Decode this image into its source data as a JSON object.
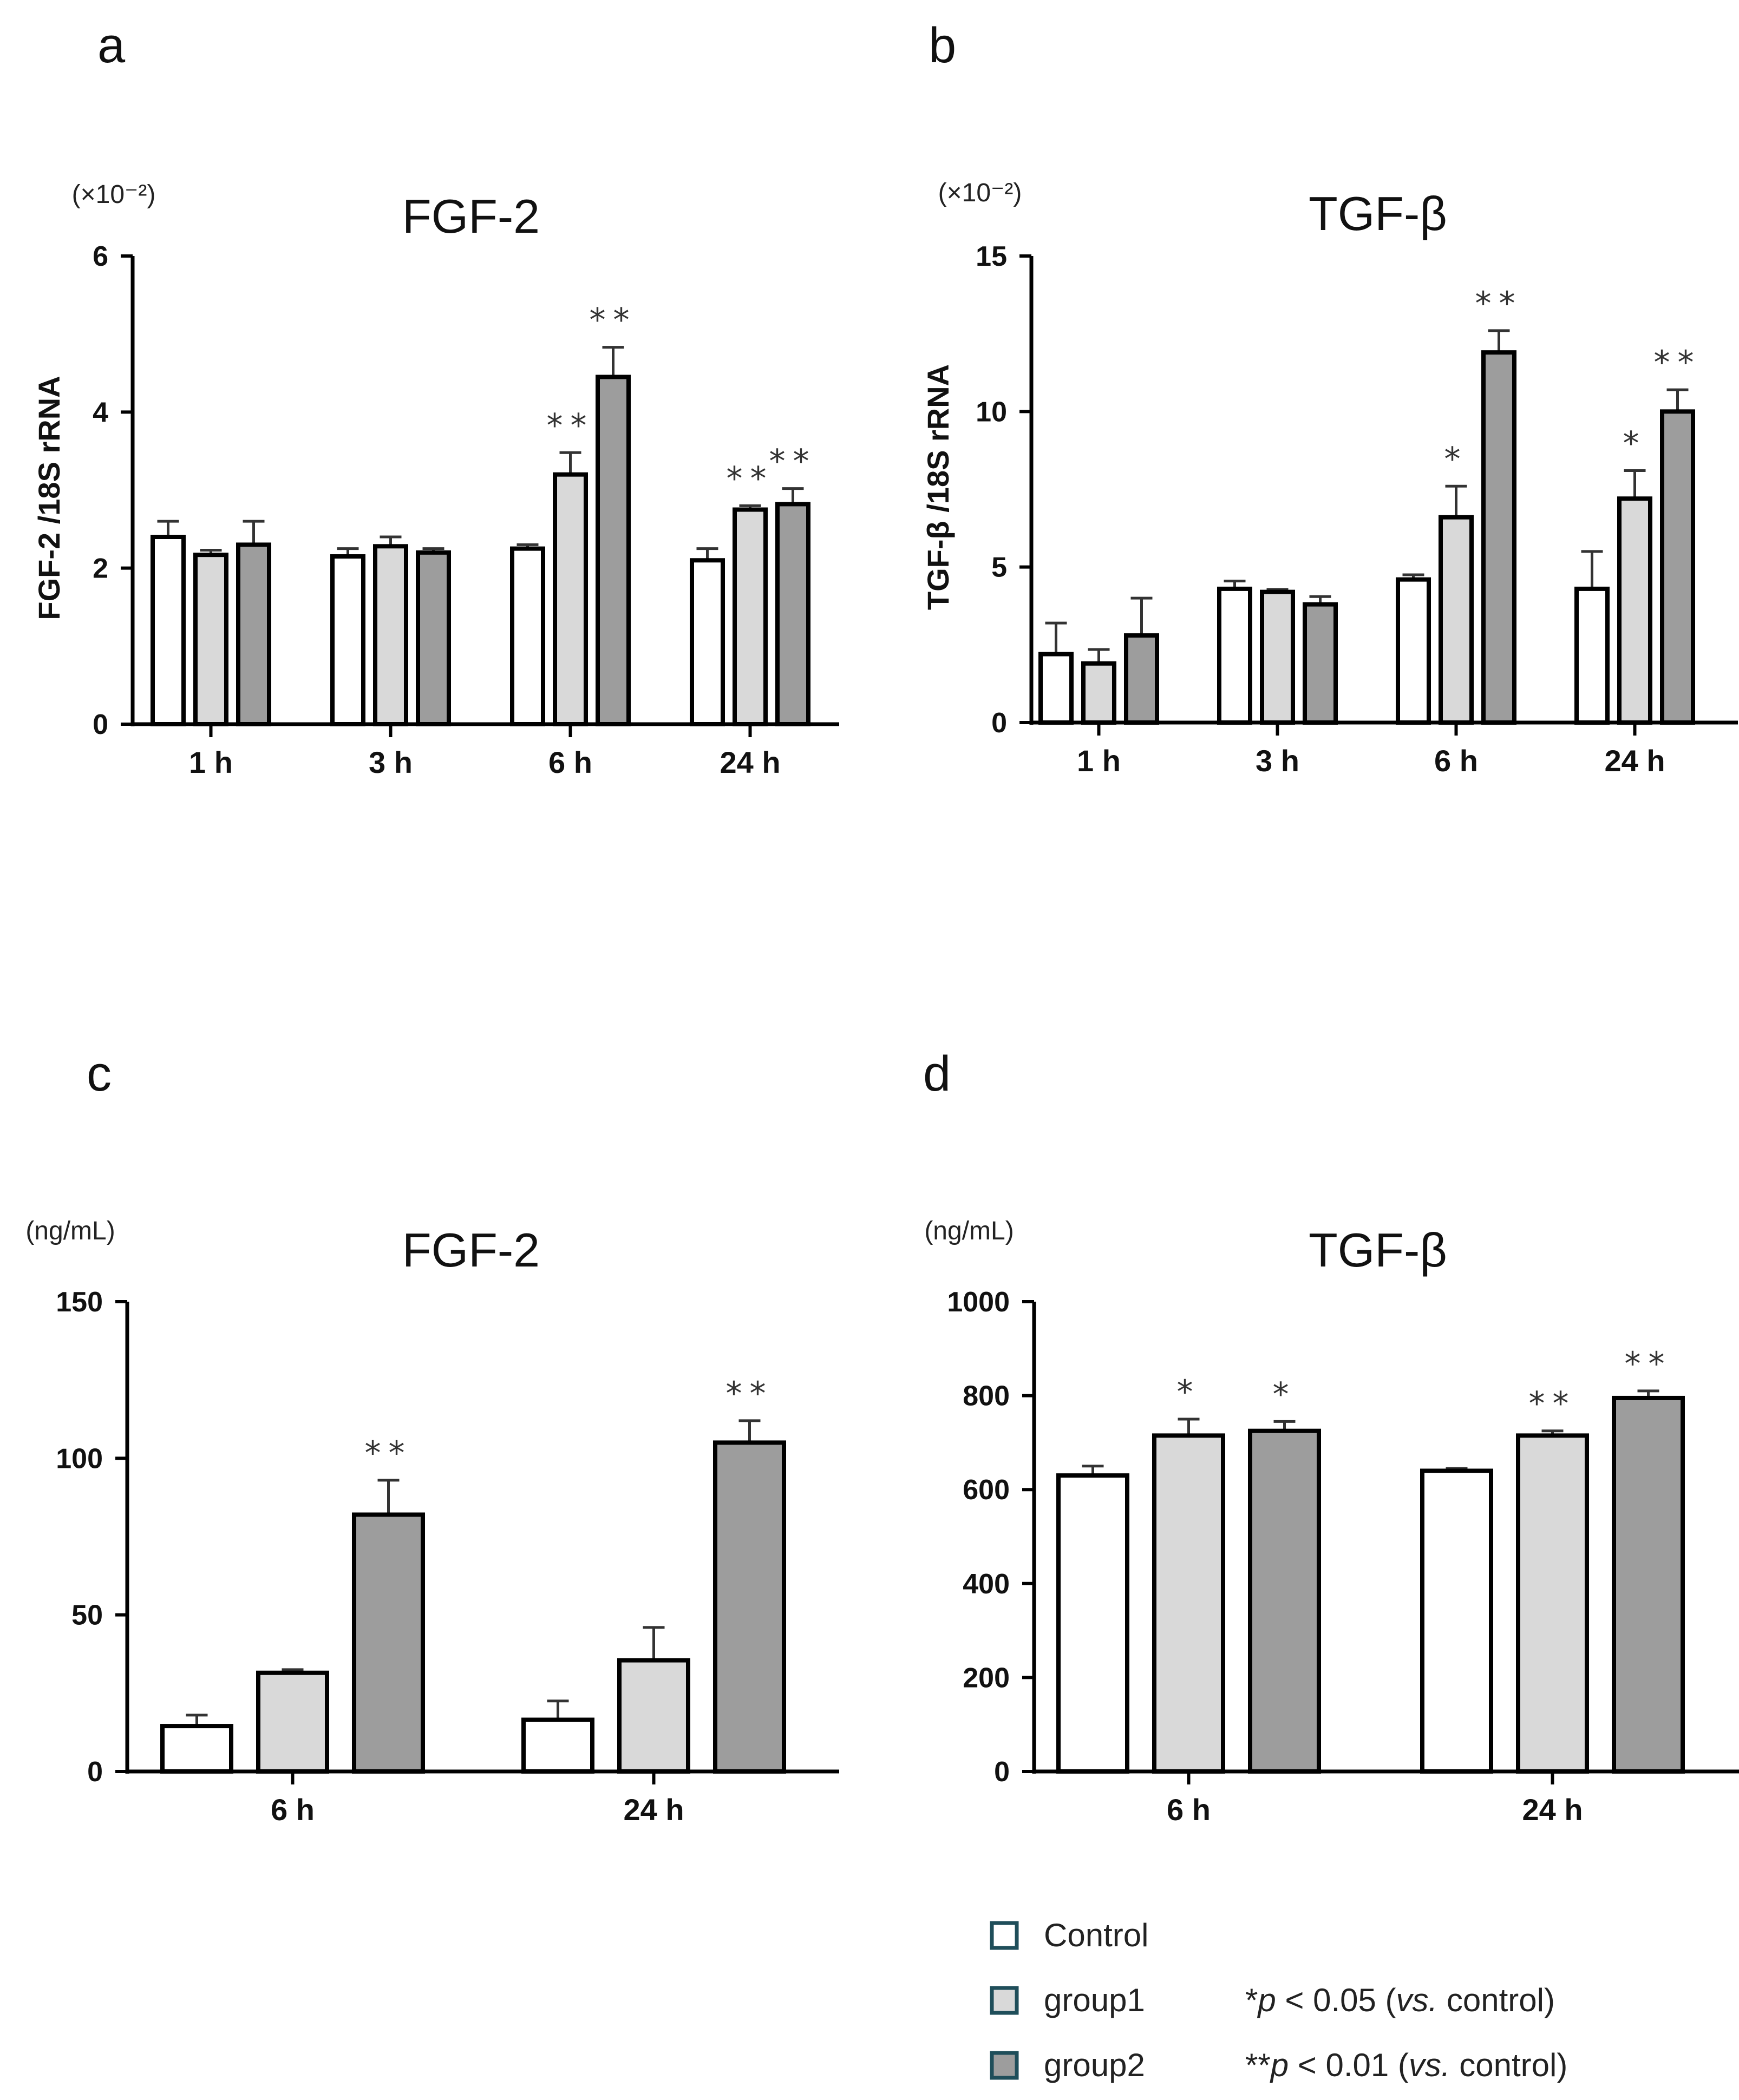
{
  "chart_data": [
    {
      "type": "bar",
      "panel": "a",
      "title": "FGF-2",
      "unit": "(×10⁻²)",
      "ylabel": "FGF-2 /18S rRNA",
      "xlabel": "",
      "ylim": [
        0,
        6
      ],
      "yticks": [
        "0",
        "2",
        "4",
        "6"
      ],
      "ytick_values": [
        0,
        2,
        4,
        6
      ],
      "categories": [
        "1 h",
        "3 h",
        "6 h",
        "24 h"
      ],
      "series": [
        {
          "name": "Control",
          "values": [
            2.4,
            2.15,
            2.25,
            2.1
          ],
          "errors": [
            0.2,
            0.1,
            0.05,
            0.15
          ],
          "sig": [
            "",
            "",
            "",
            ""
          ]
        },
        {
          "name": "group1",
          "values": [
            2.17,
            2.28,
            3.2,
            2.75
          ],
          "errors": [
            0.06,
            0.12,
            0.28,
            0.05
          ],
          "sig": [
            "",
            "",
            "**",
            "**"
          ]
        },
        {
          "name": "group2",
          "values": [
            2.3,
            2.2,
            4.45,
            2.82
          ],
          "errors": [
            0.3,
            0.05,
            0.38,
            0.2
          ],
          "sig": [
            "",
            "",
            "**",
            "**"
          ]
        }
      ]
    },
    {
      "type": "bar",
      "panel": "b",
      "title": "TGF-β",
      "unit": "(×10⁻²)",
      "ylabel": "TGF-β /18S rRNA",
      "xlabel": "",
      "ylim": [
        0,
        15
      ],
      "yticks": [
        "0",
        "5",
        "10",
        "15"
      ],
      "ytick_values": [
        0,
        5,
        10,
        15
      ],
      "categories": [
        "1 h",
        "3 h",
        "6 h",
        "24 h"
      ],
      "series": [
        {
          "name": "Control",
          "values": [
            2.2,
            4.3,
            4.6,
            4.3
          ],
          "errors": [
            1.0,
            0.25,
            0.15,
            1.2
          ],
          "sig": [
            "",
            "",
            "",
            ""
          ]
        },
        {
          "name": "group1",
          "values": [
            1.9,
            4.2,
            6.6,
            7.2
          ],
          "errors": [
            0.45,
            0.08,
            1.0,
            0.9
          ],
          "sig": [
            "",
            "",
            "*",
            "*"
          ]
        },
        {
          "name": "group2",
          "values": [
            2.8,
            3.8,
            11.9,
            10.0
          ],
          "errors": [
            1.2,
            0.25,
            0.7,
            0.7
          ],
          "sig": [
            "",
            "",
            "**",
            "**"
          ]
        }
      ]
    },
    {
      "type": "bar",
      "panel": "c",
      "title": "FGF-2",
      "unit": "(ng/mL)",
      "ylabel": "",
      "xlabel": "",
      "ylim": [
        0,
        150
      ],
      "yticks": [
        "0",
        "50",
        "100",
        "150"
      ],
      "ytick_values": [
        0,
        50,
        100,
        150
      ],
      "categories": [
        "6 h",
        "24 h"
      ],
      "series": [
        {
          "name": "Control",
          "values": [
            14.5,
            16.5
          ],
          "errors": [
            3.5,
            6
          ],
          "sig": [
            "",
            ""
          ]
        },
        {
          "name": "group1",
          "values": [
            31.5,
            35.5
          ],
          "errors": [
            1,
            10.5
          ],
          "sig": [
            "",
            ""
          ]
        },
        {
          "name": "group2",
          "values": [
            82,
            105
          ],
          "errors": [
            11,
            7
          ],
          "sig": [
            "**",
            "**"
          ]
        }
      ]
    },
    {
      "type": "bar",
      "panel": "d",
      "title": "TGF-β",
      "unit": "(ng/mL)",
      "ylabel": "",
      "xlabel": "",
      "ylim": [
        0,
        1000
      ],
      "yticks": [
        "0",
        "200",
        "400",
        "600",
        "800",
        "1000"
      ],
      "ytick_values": [
        0,
        200,
        400,
        600,
        800,
        1000
      ],
      "categories": [
        "6 h",
        "24 h"
      ],
      "series": [
        {
          "name": "Control",
          "values": [
            630,
            640
          ],
          "errors": [
            20,
            5
          ],
          "sig": [
            "",
            ""
          ]
        },
        {
          "name": "group1",
          "values": [
            715,
            715
          ],
          "errors": [
            35,
            10
          ],
          "sig": [
            "*",
            "**"
          ]
        },
        {
          "name": "group2",
          "values": [
            725,
            795
          ],
          "errors": [
            20,
            15
          ],
          "sig": [
            "*",
            "**"
          ]
        }
      ]
    }
  ],
  "legend": [
    {
      "label": "Control",
      "color": "#ffffff",
      "note": ""
    },
    {
      "label": "group1",
      "color": "#d9d9d9",
      "note": "*p < 0.05 (vs. control)"
    },
    {
      "label": "group2",
      "color": "#9d9d9d",
      "note": "**p < 0.01 (vs. control)"
    }
  ],
  "legend_notes": {
    "n1_mark": "*",
    "n1_p": "p",
    "n1_mid": " < 0.05 (",
    "n1_vs": "vs.",
    "n1_end": " control)",
    "n2_mark": "**",
    "n2_p": "p",
    "n2_mid": " < 0.01 (",
    "n2_vs": "vs.",
    "n2_end": " control)"
  },
  "colors": {
    "control": "#ffffff",
    "group1": "#d9d9d9",
    "group2": "#9d9d9d",
    "legend_border": "#1f4e5a",
    "bar_border": "#000000"
  }
}
